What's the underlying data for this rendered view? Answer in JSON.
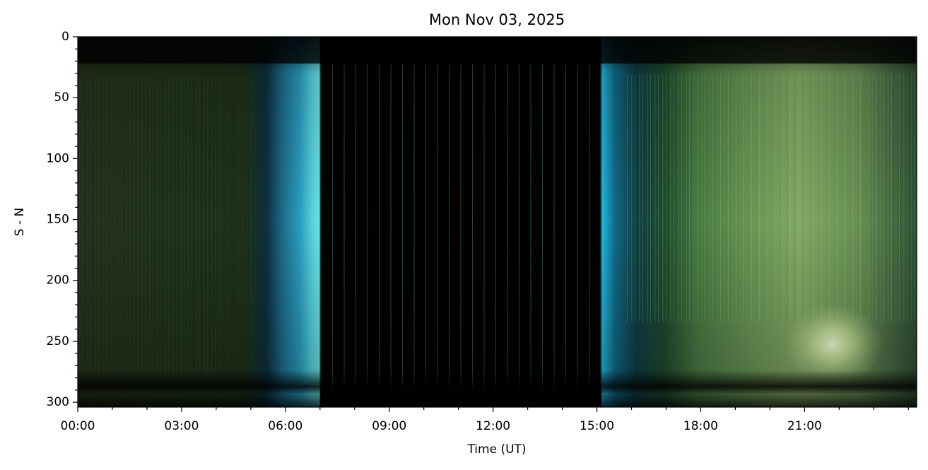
{
  "chart_data": {
    "type": "keogram",
    "title": "Mon Nov 03, 2025",
    "xlabel": "Time (UT)",
    "ylabel": "S - N",
    "xlim": [
      0,
      24.24
    ],
    "ylim": [
      304,
      0
    ],
    "xticks": [
      {
        "value": 0,
        "label": "00:00"
      },
      {
        "value": 3,
        "label": "03:00"
      },
      {
        "value": 6,
        "label": "06:00"
      },
      {
        "value": 9,
        "label": "09:00"
      },
      {
        "value": 12,
        "label": "12:00"
      },
      {
        "value": 15,
        "label": "15:00"
      },
      {
        "value": 18,
        "label": "18:00"
      },
      {
        "value": 21,
        "label": "21:00"
      }
    ],
    "xminorticks": [
      1,
      2,
      4,
      5,
      7,
      8,
      10,
      11,
      13,
      14,
      16,
      17,
      19,
      20,
      22,
      23,
      24
    ],
    "yticks": [
      0,
      50,
      100,
      150,
      200,
      250,
      300
    ],
    "yminorticks": [
      10,
      20,
      30,
      40,
      60,
      70,
      80,
      90,
      110,
      120,
      130,
      140,
      160,
      170,
      180,
      190,
      210,
      220,
      230,
      240,
      260,
      270,
      280,
      290
    ]
  }
}
